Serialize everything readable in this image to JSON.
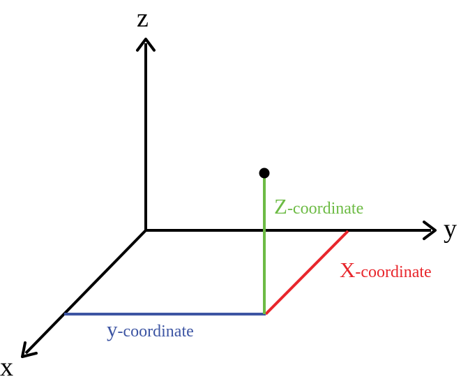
{
  "axes": {
    "z_label": "z",
    "y_label": "y",
    "x_label": "x"
  },
  "coordinates": {
    "z": {
      "initial": "Z",
      "rest": "-coordinate",
      "color": "#6dbb45"
    },
    "x": {
      "initial": "X",
      "rest": "-coordinate",
      "color": "#e8262c"
    },
    "y": {
      "initial": "y",
      "rest": "-coordinate",
      "color": "#3d55a3"
    }
  },
  "colors": {
    "axis": "#000000",
    "point": "#000000"
  }
}
